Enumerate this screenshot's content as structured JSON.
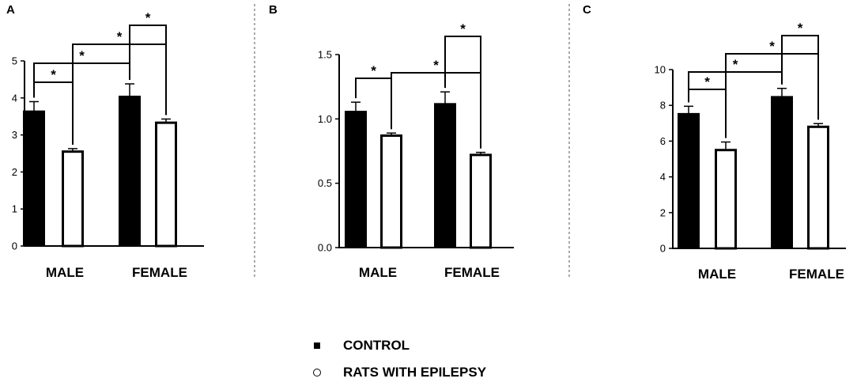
{
  "figure": {
    "legend": [
      {
        "label": "CONTROL",
        "marker": "filled-square",
        "color": "#000000"
      },
      {
        "label": "RATS WITH EPILEPSY",
        "marker": "open-circle",
        "color": "#ffffff"
      }
    ]
  },
  "chart_data": [
    {
      "panel": "A",
      "type": "bar",
      "categories": [
        "MALE",
        "FEMALE"
      ],
      "series": [
        {
          "values": [
            3.65,
            4.05
          ],
          "errors": [
            0.25,
            0.33
          ],
          "fill": "#000000"
        },
        {
          "values": [
            2.55,
            3.33
          ],
          "errors": [
            0.08,
            0.1
          ],
          "fill": "#ffffff"
        }
      ],
      "ylim": [
        0,
        5
      ],
      "yticks": [
        0,
        1,
        2,
        3,
        4,
        5
      ],
      "ytick_labels": [
        "0",
        "1",
        "2",
        "3",
        "4",
        "5"
      ],
      "significance": [
        {
          "from": [
            0,
            0
          ],
          "to": [
            0,
            1
          ],
          "label": "*"
        },
        {
          "from": [
            1,
            0
          ],
          "to": [
            1,
            1
          ],
          "label": "*"
        },
        {
          "from": [
            0,
            1
          ],
          "to": [
            1,
            1
          ],
          "label": "*"
        },
        {
          "from": [
            0,
            0
          ],
          "to": [
            1,
            0
          ],
          "label": "*"
        }
      ]
    },
    {
      "panel": "B",
      "type": "bar",
      "categories": [
        "MALE",
        "FEMALE"
      ],
      "series": [
        {
          "values": [
            1.06,
            1.12
          ],
          "errors": [
            0.07,
            0.09
          ],
          "fill": "#000000"
        },
        {
          "values": [
            0.87,
            0.72
          ],
          "errors": [
            0.02,
            0.02
          ],
          "fill": "#ffffff"
        }
      ],
      "ylim": [
        0,
        1.5
      ],
      "yticks": [
        0,
        0.5,
        1.0,
        1.5
      ],
      "ytick_labels": [
        "0.0",
        "0.5",
        "1.0",
        "1.5"
      ],
      "significance": [
        {
          "from": [
            0,
            0
          ],
          "to": [
            0,
            1
          ],
          "label": "*"
        },
        {
          "from": [
            1,
            0
          ],
          "to": [
            1,
            1
          ],
          "label": "*"
        },
        {
          "from": [
            0,
            1
          ],
          "to": [
            1,
            1
          ],
          "label": "*"
        }
      ]
    },
    {
      "panel": "C",
      "type": "bar",
      "categories": [
        "MALE",
        "FEMALE"
      ],
      "series": [
        {
          "values": [
            7.55,
            8.5
          ],
          "errors": [
            0.4,
            0.45
          ],
          "fill": "#000000"
        },
        {
          "values": [
            5.5,
            6.8
          ],
          "errors": [
            0.45,
            0.18
          ],
          "fill": "#ffffff"
        }
      ],
      "ylim": [
        0,
        10
      ],
      "yticks": [
        0,
        2,
        4,
        6,
        8,
        10
      ],
      "ytick_labels": [
        "0",
        "2",
        "4",
        "6",
        "8",
        "10"
      ],
      "significance": [
        {
          "from": [
            0,
            0
          ],
          "to": [
            0,
            1
          ],
          "label": "*"
        },
        {
          "from": [
            1,
            0
          ],
          "to": [
            1,
            1
          ],
          "label": "*"
        },
        {
          "from": [
            0,
            1
          ],
          "to": [
            1,
            1
          ],
          "label": "*"
        },
        {
          "from": [
            0,
            0
          ],
          "to": [
            1,
            0
          ],
          "label": "*"
        }
      ]
    }
  ]
}
